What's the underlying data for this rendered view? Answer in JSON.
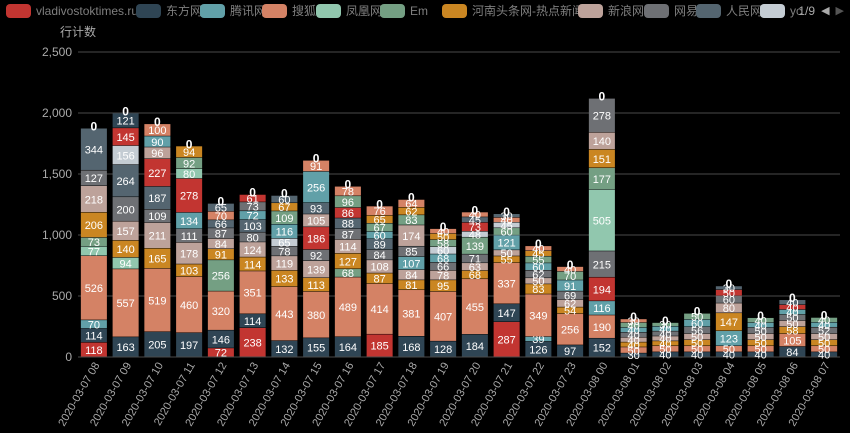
{
  "legend": {
    "items": [
      {
        "name": "vladivostoktimes.ru",
        "color": "#c23531"
      },
      {
        "name": "东方网",
        "color": "#2f4554"
      },
      {
        "name": "腾讯网",
        "color": "#61a0a8"
      },
      {
        "name": "搜狐",
        "color": "#d48265"
      },
      {
        "name": "凤凰网",
        "color": "#91c7ae"
      },
      {
        "name": "Em",
        "color": "#749f83"
      },
      {
        "name": "河南头条网-热点新闻",
        "color": "#ca8622"
      },
      {
        "name": "新浪网",
        "color": "#bda29a"
      },
      {
        "name": "网易",
        "color": "#6e7074"
      },
      {
        "name": "人民网",
        "color": "#546570"
      },
      {
        "name": "yc",
        "color": "#c4ccd3"
      }
    ],
    "page_indicator": "1/9"
  },
  "chart_data": {
    "type": "bar",
    "stacked": true,
    "ylabel": "行计数",
    "ylim": [
      0,
      2500
    ],
    "yticks": [
      "0",
      "500",
      "1,000",
      "1,500",
      "2,000",
      "2,500"
    ],
    "grid": true,
    "categories": [
      "2020-03-07 08",
      "2020-03-07 09",
      "2020-03-07 10",
      "2020-03-07 11",
      "2020-03-07 12",
      "2020-03-07 13",
      "2020-03-07 14",
      "2020-03-07 15",
      "2020-03-07 16",
      "2020-03-07 17",
      "2020-03-07 18",
      "2020-03-07 19",
      "2020-03-07 20",
      "2020-03-07 21",
      "2020-03-07 22",
      "2020-03-07 23",
      "2020-03-08 00",
      "2020-03-08 01",
      "2020-03-08 02",
      "2020-03-08 03",
      "2020-03-08 04",
      "2020-03-08 05",
      "2020-03-08 06",
      "2020-03-08 07"
    ],
    "segments": [
      [
        [
          "#c23531",
          118
        ],
        [
          "#2f4554",
          114
        ],
        [
          "#61a0a8",
          70
        ],
        [
          "#d48265",
          526
        ],
        [
          "#91c7ae",
          77
        ],
        [
          "#749f83",
          73
        ],
        [
          "#ca8622",
          206
        ],
        [
          "#bda29a",
          218
        ],
        [
          "#6e7074",
          127
        ],
        [
          "#546570",
          344
        ]
      ],
      [
        [
          "#2f4554",
          163
        ],
        [
          "#d48265",
          557
        ],
        [
          "#91c7ae",
          94
        ],
        [
          "#ca8622",
          140
        ],
        [
          "#bda29a",
          157
        ],
        [
          "#6e7074",
          200
        ],
        [
          "#546570",
          264
        ],
        [
          "#c4ccd3",
          156
        ],
        [
          "#c23531",
          145
        ],
        [
          "#2f4554",
          121
        ]
      ],
      [
        [
          "#2f4554",
          205
        ],
        [
          "#d48265",
          519
        ],
        [
          "#ca8622",
          165
        ],
        [
          "#bda29a",
          211
        ],
        [
          "#6e7074",
          109
        ],
        [
          "#546570",
          187
        ],
        [
          "#c23531",
          227
        ],
        [
          "#bda29a",
          96
        ],
        [
          "#61a0a8",
          90
        ],
        [
          "#d48265",
          100
        ]
      ],
      [
        [
          "#2f4554",
          197
        ],
        [
          "#d48265",
          460
        ],
        [
          "#ca8622",
          103
        ],
        [
          "#bda29a",
          178
        ],
        [
          "#6e7074",
          111
        ],
        [
          "#61a0a8",
          134
        ],
        [
          "#c23531",
          278
        ],
        [
          "#91c7ae",
          80
        ],
        [
          "#749f83",
          92
        ],
        [
          "#ca8622",
          94
        ]
      ],
      [
        [
          "#c23531",
          72
        ],
        [
          "#2f4554",
          146
        ],
        [
          "#d48265",
          320
        ],
        [
          "#749f83",
          256
        ],
        [
          "#ca8622",
          91
        ],
        [
          "#bda29a",
          84
        ],
        [
          "#6e7074",
          87
        ],
        [
          "#546570",
          66
        ],
        [
          "#d48265",
          70
        ],
        [
          "#546570",
          65
        ]
      ],
      [
        [
          "#c23531",
          238
        ],
        [
          "#2f4554",
          114
        ],
        [
          "#d48265",
          351
        ],
        [
          "#ca8622",
          114
        ],
        [
          "#bda29a",
          124
        ],
        [
          "#6e7074",
          80
        ],
        [
          "#546570",
          103
        ],
        [
          "#61a0a8",
          72
        ],
        [
          "#6e7074",
          73
        ],
        [
          "#c23531",
          61
        ]
      ],
      [
        [
          "#2f4554",
          132
        ],
        [
          "#d48265",
          443
        ],
        [
          "#ca8622",
          133
        ],
        [
          "#bda29a",
          119
        ],
        [
          "#6e7074",
          78
        ],
        [
          "#c4ccd3",
          65
        ],
        [
          "#61a0a8",
          116
        ],
        [
          "#749f83",
          109
        ],
        [
          "#ca8622",
          67
        ],
        [
          "#546570",
          60
        ]
      ],
      [
        [
          "#2f4554",
          155
        ],
        [
          "#d48265",
          380
        ],
        [
          "#ca8622",
          113
        ],
        [
          "#bda29a",
          139
        ],
        [
          "#6e7074",
          92
        ],
        [
          "#c23531",
          186
        ],
        [
          "#bda29a",
          105
        ],
        [
          "#546570",
          93
        ],
        [
          "#61a0a8",
          256
        ],
        [
          "#d48265",
          91
        ]
      ],
      [
        [
          "#2f4554",
          164
        ],
        [
          "#d48265",
          489
        ],
        [
          "#749f83",
          68
        ],
        [
          "#ca8622",
          127
        ],
        [
          "#bda29a",
          114
        ],
        [
          "#6e7074",
          87
        ],
        [
          "#546570",
          88
        ],
        [
          "#c23531",
          86
        ],
        [
          "#749f83",
          96
        ],
        [
          "#d48265",
          78
        ]
      ],
      [
        [
          "#c23531",
          185
        ],
        [
          "#d48265",
          414
        ],
        [
          "#ca8622",
          87
        ],
        [
          "#bda29a",
          108
        ],
        [
          "#6e7074",
          84
        ],
        [
          "#546570",
          89
        ],
        [
          "#61a0a8",
          60
        ],
        [
          "#749f83",
          67
        ],
        [
          "#ca8622",
          65
        ],
        [
          "#d48265",
          76
        ]
      ],
      [
        [
          "#2f4554",
          168
        ],
        [
          "#d48265",
          381
        ],
        [
          "#ca8622",
          81
        ],
        [
          "#bda29a",
          84
        ],
        [
          "#61a0a8",
          107
        ],
        [
          "#6e7074",
          85
        ],
        [
          "#bda29a",
          174
        ],
        [
          "#749f83",
          83
        ],
        [
          "#ca8622",
          62
        ],
        [
          "#d48265",
          64
        ]
      ],
      [
        [
          "#2f4554",
          128
        ],
        [
          "#d48265",
          407
        ],
        [
          "#ca8622",
          95
        ],
        [
          "#bda29a",
          78
        ],
        [
          "#6e7074",
          66
        ],
        [
          "#61a0a8",
          68
        ],
        [
          "#c4ccd3",
          60
        ],
        [
          "#749f83",
          58
        ],
        [
          "#ca8622",
          50
        ],
        [
          "#d48265",
          40
        ]
      ],
      [
        [
          "#2f4554",
          184
        ],
        [
          "#d48265",
          455
        ],
        [
          "#ca8622",
          68
        ],
        [
          "#bda29a",
          63
        ],
        [
          "#6e7074",
          71
        ],
        [
          "#749f83",
          139
        ],
        [
          "#c4ccd3",
          48
        ],
        [
          "#c23531",
          73
        ],
        [
          "#546570",
          45
        ],
        [
          "#d48265",
          40
        ]
      ],
      [
        [
          "#c23531",
          287
        ],
        [
          "#2f4554",
          147
        ],
        [
          "#d48265",
          337
        ],
        [
          "#ca8622",
          55
        ],
        [
          "#bda29a",
          50
        ],
        [
          "#61a0a8",
          121
        ],
        [
          "#749f83",
          60
        ],
        [
          "#c4ccd3",
          45
        ],
        [
          "#d48265",
          40
        ],
        [
          "#546570",
          30
        ]
      ],
      [
        [
          "#2f4554",
          126
        ],
        [
          "#61a0a8",
          39
        ],
        [
          "#d48265",
          349
        ],
        [
          "#ca8622",
          83
        ],
        [
          "#bda29a",
          50
        ],
        [
          "#6e7074",
          62
        ],
        [
          "#61a0a8",
          60
        ],
        [
          "#749f83",
          55
        ],
        [
          "#ca8622",
          45
        ],
        [
          "#d48265",
          40
        ]
      ],
      [
        [
          "#2f4554",
          97
        ],
        [
          "#d48265",
          256
        ],
        [
          "#ca8622",
          54
        ],
        [
          "#bda29a",
          62
        ],
        [
          "#6e7074",
          69
        ],
        [
          "#61a0a8",
          91
        ],
        [
          "#749f83",
          70
        ],
        [
          "#d48265",
          40
        ]
      ],
      [
        [
          "#2f4554",
          152
        ],
        [
          "#d48265",
          190
        ],
        [
          "#61a0a8",
          116
        ],
        [
          "#c23531",
          194
        ],
        [
          "#6e7074",
          215
        ],
        [
          "#91c7ae",
          505
        ],
        [
          "#749f83",
          177
        ],
        [
          "#ca8622",
          151
        ],
        [
          "#bda29a",
          140
        ],
        [
          "#6e7074",
          278
        ]
      ],
      [
        [
          "#2f4554",
          30
        ],
        [
          "#d48265",
          50
        ],
        [
          "#ca8622",
          40
        ],
        [
          "#bda29a",
          40
        ],
        [
          "#6e7074",
          40
        ],
        [
          "#61a0a8",
          40
        ],
        [
          "#749f83",
          40
        ],
        [
          "#d48265",
          30
        ]
      ],
      [
        [
          "#2f4554",
          40
        ],
        [
          "#d48265",
          50
        ],
        [
          "#ca8622",
          40
        ],
        [
          "#bda29a",
          40
        ],
        [
          "#6e7074",
          40
        ],
        [
          "#61a0a8",
          40
        ],
        [
          "#749f83",
          30
        ]
      ],
      [
        [
          "#2f4554",
          40
        ],
        [
          "#d48265",
          50
        ],
        [
          "#ca8622",
          50
        ],
        [
          "#bda29a",
          50
        ],
        [
          "#6e7074",
          56
        ],
        [
          "#61a0a8",
          60
        ],
        [
          "#749f83",
          50
        ]
      ],
      [
        [
          "#2f4554",
          40
        ],
        [
          "#d48265",
          50
        ],
        [
          "#61a0a8",
          123
        ],
        [
          "#ca8622",
          147
        ],
        [
          "#bda29a",
          80
        ],
        [
          "#6e7074",
          60
        ],
        [
          "#c23531",
          50
        ],
        [
          "#546570",
          30
        ]
      ],
      [
        [
          "#2f4554",
          40
        ],
        [
          "#d48265",
          50
        ],
        [
          "#ca8622",
          50
        ],
        [
          "#bda29a",
          50
        ],
        [
          "#6e7074",
          50
        ],
        [
          "#61a0a8",
          40
        ],
        [
          "#749f83",
          40
        ]
      ],
      [
        [
          "#2f4554",
          84
        ],
        [
          "#d48265",
          105
        ],
        [
          "#ca8622",
          58
        ],
        [
          "#bda29a",
          50
        ],
        [
          "#6e7074",
          50
        ],
        [
          "#61a0a8",
          40
        ],
        [
          "#c23531",
          40
        ],
        [
          "#546570",
          40
        ]
      ],
      [
        [
          "#2f4554",
          40
        ],
        [
          "#d48265",
          50
        ],
        [
          "#ca8622",
          50
        ],
        [
          "#bda29a",
          50
        ],
        [
          "#6e7074",
          52
        ],
        [
          "#61a0a8",
          40
        ],
        [
          "#749f83",
          40
        ]
      ]
    ]
  }
}
